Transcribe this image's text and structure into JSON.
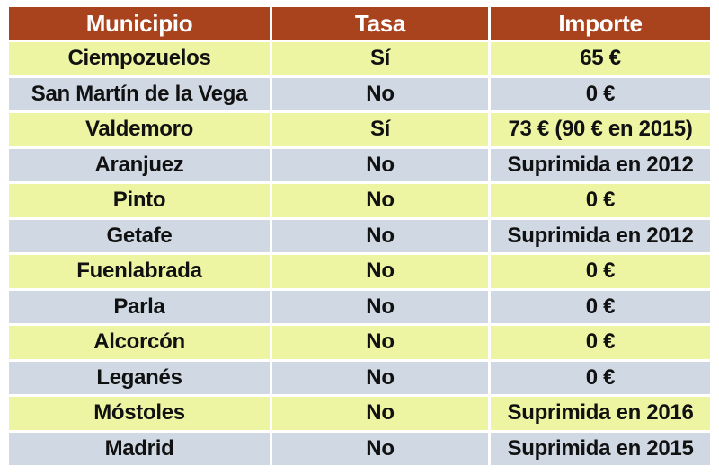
{
  "header": {
    "municipio": "Municipio",
    "tasa": "Tasa",
    "importe": "Importe"
  },
  "rows": [
    {
      "municipio": "Ciempozuelos",
      "tasa": "Sí",
      "importe": "65 €"
    },
    {
      "municipio": "San Martín de la Vega",
      "tasa": "No",
      "importe": "0 €"
    },
    {
      "municipio": "Valdemoro",
      "tasa": "Sí",
      "importe": "73 € (90 € en 2015)"
    },
    {
      "municipio": "Aranjuez",
      "tasa": "No",
      "importe": "Suprimida en 2012"
    },
    {
      "municipio": "Pinto",
      "tasa": "No",
      "importe": "0 €"
    },
    {
      "municipio": "Getafe",
      "tasa": "No",
      "importe": "Suprimida en 2012"
    },
    {
      "municipio": "Fuenlabrada",
      "tasa": "No",
      "importe": "0 €"
    },
    {
      "municipio": "Parla",
      "tasa": "No",
      "importe": "0 €"
    },
    {
      "municipio": "Alcorcón",
      "tasa": "No",
      "importe": "0 €"
    },
    {
      "municipio": "Leganés",
      "tasa": "No",
      "importe": "0 €"
    },
    {
      "municipio": "Móstoles",
      "tasa": "No",
      "importe": "Suprimida en 2016"
    },
    {
      "municipio": "Madrid",
      "tasa": "No",
      "importe": "Suprimida en 2015"
    }
  ],
  "colors": {
    "header_bg": "#a8431e",
    "row_yellow": "#edf5a3",
    "row_grey": "#cfd8e3"
  }
}
